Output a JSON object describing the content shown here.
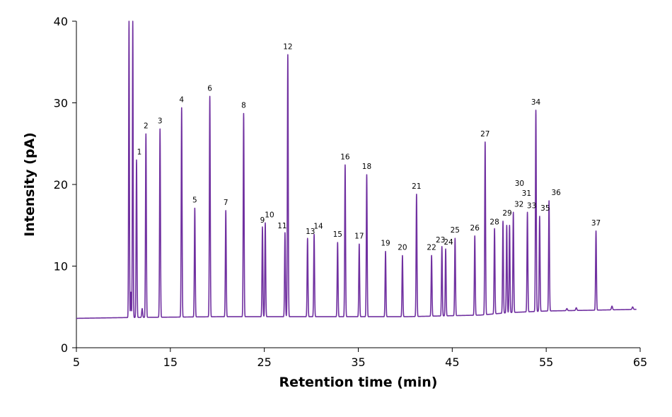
{
  "chart_data": {
    "type": "line",
    "xlabel": "Retention time (min)",
    "ylabel": "Intensity (pA)",
    "xlim": [
      5,
      65
    ],
    "ylim": [
      0,
      40
    ],
    "x_ticks": [
      5,
      15,
      25,
      35,
      45,
      55,
      65
    ],
    "y_ticks": [
      0,
      10,
      20,
      30,
      40
    ],
    "grid": false,
    "line_color": "#7030A0",
    "baseline": [
      [
        5,
        3.6
      ],
      [
        10.5,
        3.7
      ],
      [
        20,
        3.8
      ],
      [
        40,
        3.8
      ],
      [
        48,
        4.0
      ],
      [
        51,
        4.3
      ],
      [
        55,
        4.5
      ],
      [
        60,
        4.6
      ],
      [
        64.5,
        4.7
      ]
    ],
    "solvent_peaks": [
      {
        "x": 10.6,
        "y": 40,
        "w": 0.04
      },
      {
        "x": 11.0,
        "y": 40,
        "w": 0.04
      },
      {
        "x": 10.8,
        "y": 6.8,
        "w": 0.04
      },
      {
        "x": 12.0,
        "y": 4.8,
        "w": 0.05
      }
    ],
    "peaks": [
      {
        "label": "1",
        "x": 11.4,
        "y": 23.0
      },
      {
        "label": "2",
        "x": 12.4,
        "y": 26.2
      },
      {
        "label": "3",
        "x": 13.9,
        "y": 26.8
      },
      {
        "label": "4",
        "x": 16.2,
        "y": 29.4
      },
      {
        "label": "5",
        "x": 17.6,
        "y": 17.1
      },
      {
        "label": "6",
        "x": 19.2,
        "y": 30.8
      },
      {
        "label": "7",
        "x": 20.9,
        "y": 16.8
      },
      {
        "label": "8",
        "x": 22.8,
        "y": 28.7
      },
      {
        "label": "9",
        "x": 24.8,
        "y": 14.8
      },
      {
        "label": "10",
        "x": 25.1,
        "y": 15.3
      },
      {
        "label": "11",
        "x": 27.2,
        "y": 14.1
      },
      {
        "label": "12",
        "x": 27.5,
        "y": 35.9
      },
      {
        "label": "13",
        "x": 29.6,
        "y": 13.4
      },
      {
        "label": "14",
        "x": 30.3,
        "y": 13.9
      },
      {
        "label": "15",
        "x": 32.8,
        "y": 12.9
      },
      {
        "label": "16",
        "x": 33.6,
        "y": 22.4
      },
      {
        "label": "17",
        "x": 35.1,
        "y": 12.7
      },
      {
        "label": "18",
        "x": 35.9,
        "y": 21.2
      },
      {
        "label": "19",
        "x": 37.9,
        "y": 11.8
      },
      {
        "label": "20",
        "x": 39.7,
        "y": 11.3
      },
      {
        "label": "21",
        "x": 41.2,
        "y": 18.8
      },
      {
        "label": "22",
        "x": 42.8,
        "y": 11.3
      },
      {
        "label": "23",
        "x": 43.9,
        "y": 12.4
      },
      {
        "label": "24",
        "x": 44.3,
        "y": 12.1
      },
      {
        "label": "25",
        "x": 45.3,
        "y": 13.4
      },
      {
        "label": "26",
        "x": 47.4,
        "y": 13.7
      },
      {
        "label": "27",
        "x": 48.5,
        "y": 25.2
      },
      {
        "label": "28",
        "x": 49.5,
        "y": 14.6
      },
      {
        "label": "29",
        "x": 50.4,
        "y": 15.5
      },
      {
        "label": "30",
        "x": 50.8,
        "y": 15.0
      },
      {
        "label": "31",
        "x": 51.1,
        "y": 15.0
      },
      {
        "label": "32",
        "x": 51.5,
        "y": 16.6
      },
      {
        "label": "33",
        "x": 53.0,
        "y": 16.6
      },
      {
        "label": "34",
        "x": 53.9,
        "y": 29.1
      },
      {
        "label": "35",
        "x": 54.3,
        "y": 16.1
      },
      {
        "label": "36",
        "x": 55.3,
        "y": 18.0
      },
      {
        "label": "37",
        "x": 60.3,
        "y": 14.3
      }
    ],
    "minor_bumps": [
      {
        "x": 57.2,
        "y": 4.8
      },
      {
        "x": 58.2,
        "y": 4.9
      },
      {
        "x": 62.0,
        "y": 5.1
      },
      {
        "x": 64.2,
        "y": 5.0
      }
    ]
  }
}
